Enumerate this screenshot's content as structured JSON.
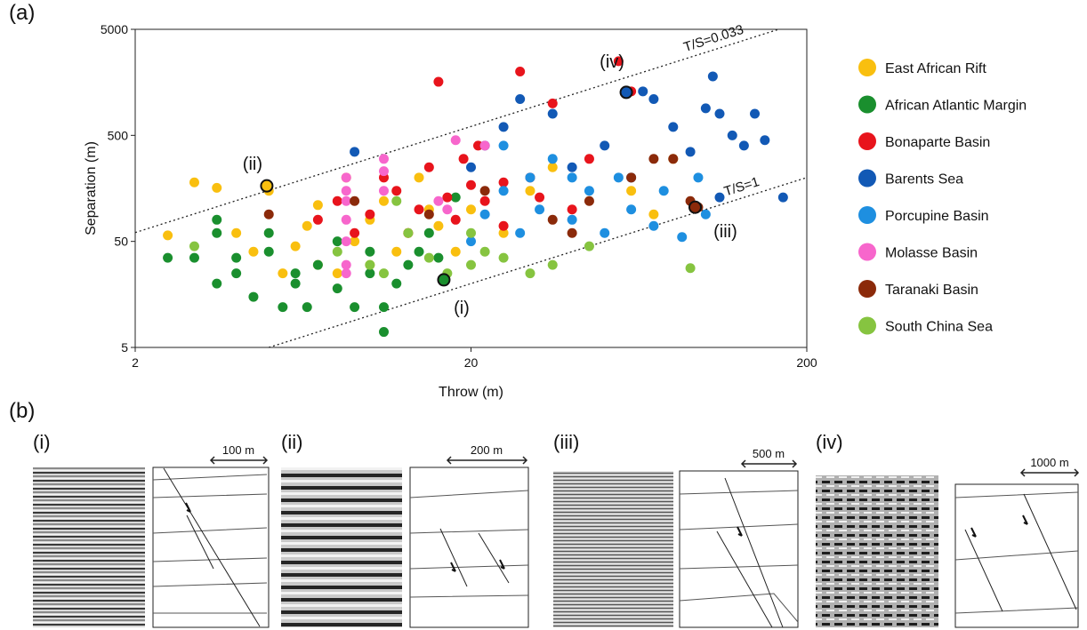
{
  "chart_data": {
    "type": "scatter",
    "panel_label": "(a)",
    "x_label": "Throw (m)",
    "y_label": "Separation (m)",
    "xlog": true,
    "ylog": true,
    "xlim": [
      2,
      200
    ],
    "ylim": [
      5,
      5000
    ],
    "xticks": [
      2,
      20,
      200
    ],
    "yticks": [
      5,
      50,
      500,
      5000
    ],
    "legend": "right",
    "series": [
      {
        "name": "East African Rift",
        "color": "#f9bf0f",
        "x": [
          2.5,
          3,
          3.5,
          4,
          4.5,
          5,
          5.5,
          6,
          6.5,
          7,
          7,
          8,
          8.5,
          9,
          10,
          10,
          11,
          12,
          13,
          14,
          15,
          16,
          18,
          20,
          25,
          30,
          35,
          60,
          80,
          70
        ],
        "y": [
          57,
          180,
          160,
          60,
          40,
          150,
          25,
          45,
          70,
          30,
          110,
          25,
          200,
          50,
          80,
          30,
          120,
          40,
          60,
          200,
          100,
          70,
          40,
          100,
          60,
          150,
          250,
          150,
          300,
          90
        ]
      },
      {
        "name": "African Atlantic Margin",
        "color": "#1a8f2e",
        "x": [
          2.5,
          3,
          3.5,
          3.5,
          4,
          4,
          4.5,
          5,
          5,
          5.5,
          6,
          6.5,
          7,
          8,
          8,
          9,
          10,
          10,
          11,
          11,
          12,
          13,
          14,
          15,
          16,
          18,
          3.5,
          6
        ],
        "y": [
          35,
          35,
          60,
          20,
          25,
          35,
          15,
          40,
          60,
          12,
          25,
          12,
          30,
          18,
          50,
          12,
          25,
          40,
          12,
          7,
          20,
          30,
          40,
          60,
          35,
          130,
          80,
          20
        ]
      },
      {
        "name": "Bonaparte Basin",
        "color": "#e8141c",
        "x": [
          7,
          8,
          9,
          10,
          11,
          12,
          13,
          14,
          15,
          16,
          17,
          18,
          20,
          21,
          22,
          25,
          28,
          30,
          32,
          35,
          40,
          45,
          55,
          60,
          25,
          19
        ],
        "y": [
          80,
          120,
          60,
          90,
          200,
          150,
          60,
          100,
          250,
          1600,
          130,
          80,
          170,
          400,
          120,
          70,
          2000,
          200,
          130,
          1000,
          100,
          300,
          2500,
          1300,
          180,
          300
        ]
      },
      {
        "name": "Barents Sea",
        "color": "#1259b5",
        "x": [
          9,
          20,
          22,
          25,
          28,
          35,
          40,
          50,
          60,
          65,
          70,
          80,
          90,
          100,
          105,
          110,
          120,
          130,
          140,
          150,
          170,
          110
        ],
        "y": [
          350,
          250,
          400,
          600,
          1100,
          800,
          250,
          400,
          200,
          1300,
          1100,
          600,
          350,
          900,
          1800,
          800,
          500,
          400,
          800,
          450,
          130,
          130
        ]
      },
      {
        "name": "Porcupine Basin",
        "color": "#1e8fe0",
        "x": [
          20,
          22,
          25,
          28,
          30,
          32,
          35,
          40,
          45,
          50,
          55,
          60,
          70,
          75,
          85,
          95,
          100,
          40,
          25
        ],
        "y": [
          50,
          90,
          150,
          60,
          200,
          100,
          300,
          80,
          150,
          60,
          200,
          100,
          70,
          150,
          55,
          200,
          90,
          200,
          400
        ]
      },
      {
        "name": "Molasse Basin",
        "color": "#f766cc",
        "x": [
          8.5,
          8.5,
          8.5,
          8.5,
          8.5,
          8.5,
          11,
          11,
          11,
          16,
          17,
          18,
          22,
          8.5
        ],
        "y": [
          30,
          50,
          80,
          120,
          150,
          200,
          230,
          300,
          150,
          120,
          100,
          450,
          400,
          25
        ]
      },
      {
        "name": "Taranaki Basin",
        "color": "#8b2a0a",
        "x": [
          5,
          9,
          22,
          35,
          45,
          60,
          70,
          80,
          90,
          95,
          40,
          15
        ],
        "y": [
          90,
          120,
          150,
          80,
          120,
          200,
          300,
          300,
          120,
          105,
          60,
          90
        ]
      },
      {
        "name": "South China Sea",
        "color": "#86c440",
        "x": [
          3,
          8,
          10,
          11,
          12,
          13,
          15,
          17,
          20,
          22,
          25,
          30,
          35,
          45,
          90,
          20
        ],
        "y": [
          45,
          40,
          30,
          25,
          120,
          60,
          35,
          25,
          30,
          40,
          35,
          25,
          30,
          45,
          28,
          60
        ]
      }
    ],
    "ratio_lines": [
      {
        "label": "T/S=0.033",
        "ratio": 0.033
      },
      {
        "label": "T/S=1",
        "ratio": 1
      }
    ],
    "annotations": [
      {
        "label": "(i)",
        "x": 16.6,
        "y": 21.7,
        "color": "#1a8f2e"
      },
      {
        "label": "(ii)",
        "x": 4.93,
        "y": 167,
        "color": "#f9bf0f"
      },
      {
        "label": "(iii)",
        "x": 93,
        "y": 105,
        "color": "#8b2a0a"
      },
      {
        "label": "(iv)",
        "x": 58,
        "y": 1273,
        "color": "#1259b5"
      }
    ]
  },
  "panel_b": {
    "label": "(b)",
    "panels": [
      {
        "label": "(i)",
        "scale": "100 m"
      },
      {
        "label": "(ii)",
        "scale": "200 m"
      },
      {
        "label": "(iii)",
        "scale": "500 m"
      },
      {
        "label": "(iv)",
        "scale": "1000 m"
      }
    ]
  }
}
